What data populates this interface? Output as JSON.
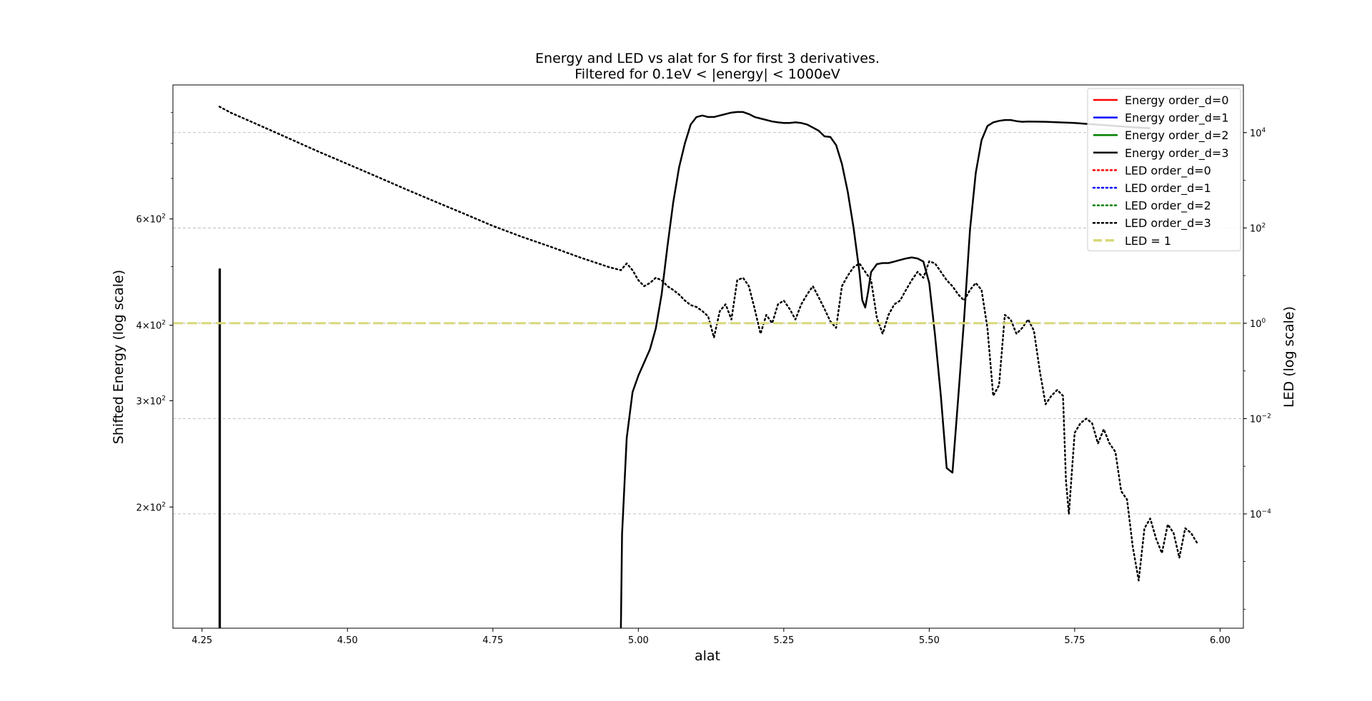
{
  "chart_data": {
    "type": "line",
    "title": "Energy and LED vs alat for S for first 3 derivatives.",
    "subtitle": "Filtered for 0.1eV < |energy| < 1000eV",
    "xlabel": "alat",
    "ylabel_left": "Shifted Energy (log scale)",
    "ylabel_right": "LED (log scale)",
    "x_ticks": [
      "4.25",
      "4.50",
      "4.75",
      "5.00",
      "5.25",
      "5.50",
      "5.75",
      "6.00"
    ],
    "xlim": [
      4.2,
      6.04
    ],
    "y_left": {
      "scale": "log",
      "lim": [
        126,
        1000
      ],
      "ticks": [
        {
          "base": "6",
          "value": 600
        },
        {
          "base": "4",
          "value": 400
        },
        {
          "base": "3",
          "value": 300
        },
        {
          "base": "2",
          "value": 200
        }
      ],
      "tick_exp": "2"
    },
    "y_right": {
      "scale": "log",
      "lim": [
        4e-07,
        100000
      ],
      "ticks": [
        {
          "base": "10",
          "exp": "4",
          "value": 10000
        },
        {
          "base": "10",
          "exp": "2",
          "value": 100
        },
        {
          "base": "10",
          "exp": "0",
          "value": 1
        },
        {
          "base": "10",
          "exp": "−2",
          "value": 0.01
        },
        {
          "base": "10",
          "exp": "−4",
          "value": 0.0001
        }
      ]
    },
    "grid": "right-axis major ticks, dashed",
    "legend": {
      "placement": "top-right",
      "entries": [
        {
          "label": "Energy order_d=0",
          "color": "#ff0000",
          "style": "solid"
        },
        {
          "label": "Energy order_d=1",
          "color": "#0000ff",
          "style": "solid"
        },
        {
          "label": "Energy order_d=2",
          "color": "#008000",
          "style": "solid"
        },
        {
          "label": "Energy order_d=3",
          "color": "#000000",
          "style": "solid"
        },
        {
          "label": "LED order_d=0",
          "color": "#ff0000",
          "style": "dotted"
        },
        {
          "label": "LED order_d=1",
          "color": "#0000ff",
          "style": "dotted"
        },
        {
          "label": "LED order_d=2",
          "color": "#008000",
          "style": "dotted"
        },
        {
          "label": "LED order_d=3",
          "color": "#000000",
          "style": "dotted"
        },
        {
          "label": "LED = 1",
          "color": "#d8d87a",
          "style": "dashed"
        }
      ]
    },
    "series": [
      {
        "name": "Energy order_d=3",
        "axis": "left",
        "style": "solid",
        "color": "#000000",
        "segments": [
          [
            [
              4.28,
              126
            ],
            [
              4.28,
              495
            ],
            [
              4.281,
              495
            ],
            [
              4.281,
              126
            ]
          ],
          [
            [
              4.97,
              126
            ],
            [
              4.972,
              180
            ],
            [
              4.98,
              260
            ],
            [
              4.99,
              310
            ],
            [
              5.0,
              330
            ],
            [
              5.02,
              365
            ],
            [
              5.03,
              395
            ],
            [
              5.04,
              450
            ],
            [
              5.05,
              540
            ],
            [
              5.06,
              640
            ],
            [
              5.07,
              730
            ],
            [
              5.08,
              800
            ],
            [
              5.09,
              860
            ],
            [
              5.1,
              885
            ],
            [
              5.11,
              890
            ],
            [
              5.12,
              885
            ],
            [
              5.13,
              885
            ],
            [
              5.14,
              890
            ],
            [
              5.15,
              895
            ],
            [
              5.16,
              900
            ],
            [
              5.17,
              902
            ],
            [
              5.18,
              902
            ],
            [
              5.19,
              895
            ],
            [
              5.2,
              885
            ],
            [
              5.21,
              880
            ],
            [
              5.22,
              875
            ],
            [
              5.23,
              870
            ],
            [
              5.24,
              867
            ],
            [
              5.25,
              865
            ],
            [
              5.26,
              865
            ],
            [
              5.27,
              867
            ],
            [
              5.28,
              865
            ],
            [
              5.29,
              860
            ],
            [
              5.3,
              850
            ],
            [
              5.31,
              840
            ],
            [
              5.32,
              822
            ],
            [
              5.33,
              820
            ],
            [
              5.34,
              795
            ],
            [
              5.35,
              740
            ],
            [
              5.36,
              665
            ],
            [
              5.37,
              580
            ],
            [
              5.38,
              490
            ],
            [
              5.385,
              440
            ],
            [
              5.39,
              428
            ],
            [
              5.395,
              455
            ],
            [
              5.4,
              490
            ],
            [
              5.41,
              505
            ],
            [
              5.42,
              507
            ],
            [
              5.43,
              507
            ],
            [
              5.44,
              510
            ],
            [
              5.45,
              513
            ],
            [
              5.46,
              516
            ],
            [
              5.47,
              518
            ],
            [
              5.48,
              516
            ],
            [
              5.49,
              510
            ],
            [
              5.5,
              470
            ],
            [
              5.51,
              385
            ],
            [
              5.52,
              305
            ],
            [
              5.53,
              232
            ],
            [
              5.54,
              228
            ],
            [
              5.55,
              305
            ],
            [
              5.56,
              410
            ],
            [
              5.57,
              575
            ],
            [
              5.58,
              715
            ],
            [
              5.59,
              810
            ],
            [
              5.6,
              855
            ],
            [
              5.61,
              867
            ],
            [
              5.62,
              872
            ],
            [
              5.63,
              875
            ],
            [
              5.64,
              875
            ],
            [
              5.65,
              871
            ],
            [
              5.66,
              869
            ],
            [
              5.67,
              870
            ],
            [
              5.7,
              869
            ],
            [
              5.75,
              865
            ],
            [
              5.8,
              858
            ],
            [
              5.85,
              851
            ],
            [
              5.88,
              848
            ]
          ]
        ]
      },
      {
        "name": "LED order_d=3",
        "axis": "right",
        "style": "dotted",
        "color": "#000000",
        "segments": [
          [
            [
              4.28,
              35000
            ],
            [
              4.3,
              26000
            ],
            [
              4.35,
              14000
            ],
            [
              4.4,
              7500
            ],
            [
              4.45,
              4000
            ],
            [
              4.5,
              2200
            ],
            [
              4.55,
              1200
            ],
            [
              4.6,
              650
            ],
            [
              4.65,
              360
            ],
            [
              4.7,
              200
            ],
            [
              4.75,
              110
            ],
            [
              4.8,
              65
            ],
            [
              4.85,
              40
            ],
            [
              4.9,
              24
            ],
            [
              4.95,
              15
            ],
            [
              4.97,
              13
            ],
            [
              4.98,
              18
            ],
            [
              4.99,
              13
            ],
            [
              5.0,
              8
            ],
            [
              5.01,
              6
            ],
            [
              5.02,
              7
            ],
            [
              5.03,
              9
            ],
            [
              5.04,
              8
            ],
            [
              5.05,
              6
            ],
            [
              5.06,
              5
            ],
            [
              5.07,
              4
            ],
            [
              5.08,
              3
            ],
            [
              5.09,
              2.4
            ],
            [
              5.1,
              2.2
            ],
            [
              5.11,
              1.8
            ],
            [
              5.12,
              1.4
            ],
            [
              5.13,
              0.5
            ],
            [
              5.14,
              1.8
            ],
            [
              5.15,
              2.5
            ],
            [
              5.16,
              1.2
            ],
            [
              5.17,
              8
            ],
            [
              5.18,
              9
            ],
            [
              5.19,
              6
            ],
            [
              5.2,
              2
            ],
            [
              5.21,
              0.6
            ],
            [
              5.22,
              1.5
            ],
            [
              5.23,
              1
            ],
            [
              5.24,
              2.5
            ],
            [
              5.25,
              3
            ],
            [
              5.26,
              2
            ],
            [
              5.27,
              1.2
            ],
            [
              5.28,
              2.5
            ],
            [
              5.29,
              4
            ],
            [
              5.3,
              6
            ],
            [
              5.31,
              3.5
            ],
            [
              5.32,
              2
            ],
            [
              5.33,
              1.1
            ],
            [
              5.34,
              0.8
            ],
            [
              5.35,
              6
            ],
            [
              5.36,
              10
            ],
            [
              5.37,
              15
            ],
            [
              5.38,
              18
            ],
            [
              5.39,
              12
            ],
            [
              5.4,
              8
            ],
            [
              5.41,
              1.3
            ],
            [
              5.42,
              0.6
            ],
            [
              5.43,
              1.5
            ],
            [
              5.44,
              2.5
            ],
            [
              5.45,
              3
            ],
            [
              5.46,
              5
            ],
            [
              5.47,
              8
            ],
            [
              5.48,
              12
            ],
            [
              5.49,
              9
            ],
            [
              5.5,
              20
            ],
            [
              5.51,
              18
            ],
            [
              5.52,
              12
            ],
            [
              5.53,
              8
            ],
            [
              5.54,
              6
            ],
            [
              5.55,
              4
            ],
            [
              5.56,
              3
            ],
            [
              5.57,
              5
            ],
            [
              5.58,
              7
            ],
            [
              5.59,
              5
            ],
            [
              5.6,
              0.8
            ],
            [
              5.61,
              0.03
            ],
            [
              5.62,
              0.05
            ],
            [
              5.63,
              1.5
            ],
            [
              5.64,
              1.2
            ],
            [
              5.65,
              0.6
            ],
            [
              5.66,
              0.8
            ],
            [
              5.67,
              1.2
            ],
            [
              5.68,
              0.7
            ],
            [
              5.69,
              0.1
            ],
            [
              5.7,
              0.02
            ],
            [
              5.71,
              0.03
            ],
            [
              5.72,
              0.04
            ],
            [
              5.73,
              0.03
            ],
            [
              5.735,
              0.0005
            ],
            [
              5.74,
              0.0001
            ],
            [
              5.75,
              0.005
            ],
            [
              5.76,
              0.008
            ],
            [
              5.77,
              0.01
            ],
            [
              5.78,
              0.008
            ],
            [
              5.79,
              0.003
            ],
            [
              5.8,
              0.006
            ],
            [
              5.81,
              0.003
            ],
            [
              5.82,
              0.002
            ],
            [
              5.83,
              0.0003
            ],
            [
              5.84,
              0.0002
            ],
            [
              5.85,
              2e-05
            ],
            [
              5.86,
              4e-06
            ],
            [
              5.87,
              5e-05
            ],
            [
              5.88,
              8e-05
            ],
            [
              5.89,
              3e-05
            ],
            [
              5.9,
              1.5e-05
            ],
            [
              5.91,
              6e-05
            ],
            [
              5.92,
              4e-05
            ],
            [
              5.93,
              1.2e-05
            ],
            [
              5.94,
              5e-05
            ],
            [
              5.95,
              4e-05
            ],
            [
              5.96,
              2.5e-05
            ]
          ]
        ]
      },
      {
        "name": "LED = 1",
        "axis": "right",
        "style": "dashed",
        "color": "#d8d87a",
        "segments": [
          [
            [
              4.2,
              1
            ],
            [
              6.04,
              1
            ]
          ]
        ]
      }
    ]
  }
}
